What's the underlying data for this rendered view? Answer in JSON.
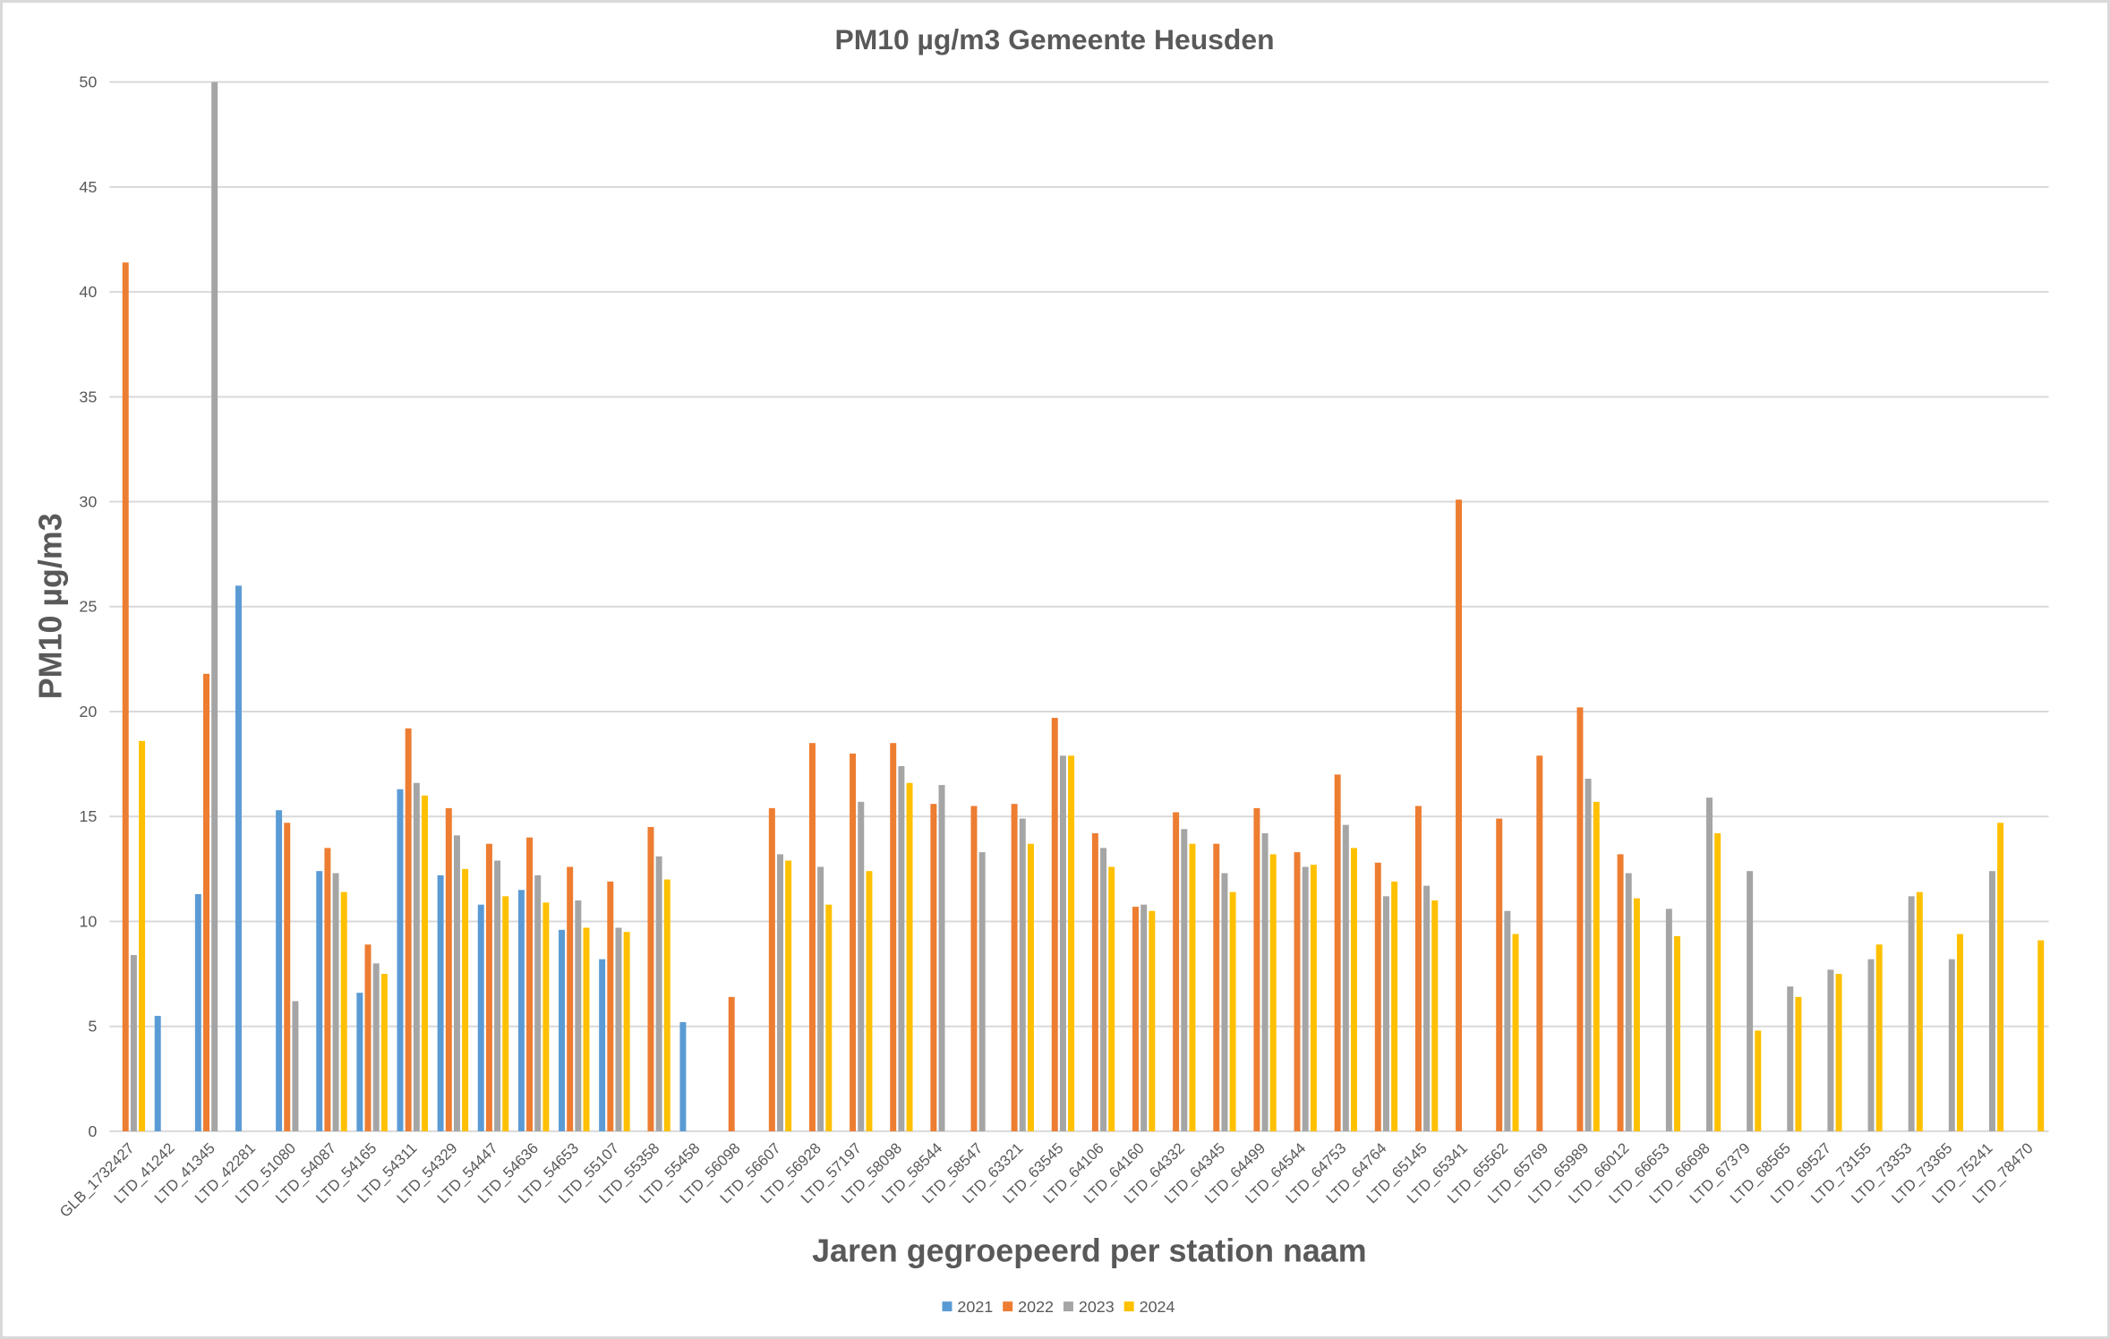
{
  "chart_data": {
    "type": "bar",
    "title": "PM10 µg/m3 Gemeente Heusden",
    "xlabel": "Jaren gegroepeerd per station naam",
    "ylabel": "PM10 µg/m3",
    "ylim": [
      0,
      50
    ],
    "yticks": [
      0,
      5,
      10,
      15,
      20,
      25,
      30,
      35,
      40,
      45,
      50
    ],
    "grid": true,
    "legend_position": "bottom",
    "categories": [
      "GLB_1732427",
      "LTD_41242",
      "LTD_41345",
      "LTD_42281",
      "LTD_51080",
      "LTD_54087",
      "LTD_54165",
      "LTD_54311",
      "LTD_54329",
      "LTD_54447",
      "LTD_54636",
      "LTD_54653",
      "LTD_55107",
      "LTD_55358",
      "LTD_55458",
      "LTD_56098",
      "LTD_56607",
      "LTD_56928",
      "LTD_57197",
      "LTD_58098",
      "LTD_58544",
      "LTD_58547",
      "LTD_63321",
      "LTD_63545",
      "LTD_64106",
      "LTD_64160",
      "LTD_64332",
      "LTD_64345",
      "LTD_64499",
      "LTD_64544",
      "LTD_64753",
      "LTD_64764",
      "LTD_65145",
      "LTD_65341",
      "LTD_65562",
      "LTD_65769",
      "LTD_65989",
      "LTD_66012",
      "LTD_66653",
      "LTD_66698",
      "LTD_67379",
      "LTD_68565",
      "LTD_69527",
      "LTD_73155",
      "LTD_73353",
      "LTD_73365",
      "LTD_75241",
      "LTD_78470"
    ],
    "series": [
      {
        "name": "2021",
        "color": "#5b9bd5",
        "values": [
          null,
          5.5,
          11.3,
          26.0,
          15.3,
          12.4,
          6.6,
          16.3,
          12.2,
          10.8,
          11.5,
          9.6,
          8.2,
          null,
          5.2,
          null,
          null,
          null,
          null,
          null,
          null,
          null,
          null,
          null,
          null,
          null,
          null,
          null,
          null,
          null,
          null,
          null,
          null,
          null,
          null,
          null,
          null,
          null,
          null,
          null,
          null,
          null,
          null,
          null,
          null,
          null,
          null,
          null
        ]
      },
      {
        "name": "2022",
        "color": "#ed7d31",
        "values": [
          41.4,
          null,
          21.8,
          null,
          14.7,
          13.5,
          8.9,
          19.2,
          15.4,
          13.7,
          14.0,
          12.6,
          11.9,
          14.5,
          null,
          6.4,
          15.4,
          18.5,
          18.0,
          18.5,
          15.6,
          15.5,
          15.6,
          19.7,
          14.2,
          10.7,
          15.2,
          13.7,
          15.4,
          13.3,
          17.0,
          12.8,
          15.5,
          30.1,
          14.9,
          17.9,
          20.2,
          13.2,
          null,
          null,
          null,
          null,
          null,
          null,
          null,
          null,
          null,
          null
        ]
      },
      {
        "name": "2023",
        "color": "#a5a5a5",
        "values": [
          8.4,
          null,
          50.0,
          null,
          6.2,
          12.3,
          8.0,
          16.6,
          14.1,
          12.9,
          12.2,
          11.0,
          9.7,
          13.1,
          null,
          null,
          13.2,
          12.6,
          15.7,
          17.4,
          16.5,
          13.3,
          14.9,
          17.9,
          13.5,
          10.8,
          14.4,
          12.3,
          14.2,
          12.6,
          14.6,
          11.2,
          11.7,
          null,
          10.5,
          null,
          16.8,
          12.3,
          10.6,
          15.9,
          12.4,
          6.9,
          7.7,
          8.2,
          11.2,
          8.2,
          12.4,
          null
        ]
      },
      {
        "name": "2024",
        "color": "#ffc000",
        "values": [
          18.6,
          null,
          null,
          null,
          null,
          11.4,
          7.5,
          16.0,
          12.5,
          11.2,
          10.9,
          9.7,
          9.5,
          12.0,
          null,
          null,
          12.9,
          10.8,
          12.4,
          16.6,
          null,
          null,
          13.7,
          17.9,
          12.6,
          10.5,
          13.7,
          11.4,
          13.2,
          12.7,
          13.5,
          11.9,
          11.0,
          null,
          9.4,
          null,
          15.7,
          11.1,
          9.3,
          14.2,
          4.8,
          6.4,
          7.5,
          8.9,
          11.4,
          9.4,
          14.7,
          9.1
        ]
      }
    ]
  }
}
